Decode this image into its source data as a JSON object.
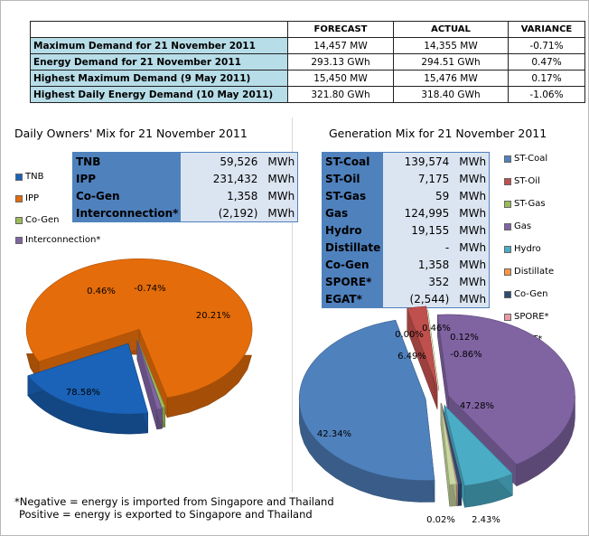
{
  "summary": {
    "headers": [
      "",
      "FORECAST",
      "ACTUAL",
      "VARIANCE"
    ],
    "rows": [
      {
        "label": "Maximum Demand for 21 November 2011",
        "forecast": "14,457  MW",
        "actual": "14,355  MW",
        "variance": "-0.71%"
      },
      {
        "label": "Energy Demand for 21 November 2011",
        "forecast": "293.13  GWh",
        "actual": "294.51  GWh",
        "variance": "0.47%"
      },
      {
        "label": "Highest Maximum Demand (9 May 2011)",
        "forecast": "15,450  MW",
        "actual": "15,476  MW",
        "variance": "0.17%"
      },
      {
        "label": "Highest Daily Energy Demand (10 May 2011)",
        "forecast": "321.80  GWh",
        "actual": "318.40  GWh",
        "variance": "-1.06%"
      }
    ]
  },
  "owners": {
    "title": "Daily Owners' Mix for 21 November 2011",
    "table": [
      {
        "name": "TNB",
        "value": "59,526",
        "unit": "MWh"
      },
      {
        "name": "IPP",
        "value": "231,432",
        "unit": "MWh"
      },
      {
        "name": "Co-Gen",
        "value": "1,358",
        "unit": "MWh"
      },
      {
        "name": "Interconnection*",
        "value": "(2,192)",
        "unit": "MWh"
      }
    ],
    "legend": [
      "TNB",
      "IPP",
      "Co-Gen",
      "Interconnection*"
    ]
  },
  "generation": {
    "title": "Generation Mix for 21 November 2011",
    "table": [
      {
        "name": "ST-Coal",
        "value": "139,574",
        "unit": "MWh"
      },
      {
        "name": "ST-Oil",
        "value": "7,175",
        "unit": "MWh"
      },
      {
        "name": "ST-Gas",
        "value": "59",
        "unit": "MWh"
      },
      {
        "name": "Gas",
        "value": "124,995",
        "unit": "MWh"
      },
      {
        "name": "Hydro",
        "value": "19,155",
        "unit": "MWh"
      },
      {
        "name": "Distillate",
        "value": "-",
        "unit": "MWh"
      },
      {
        "name": "Co-Gen",
        "value": "1,358",
        "unit": "MWh"
      },
      {
        "name": "SPORE*",
        "value": "352",
        "unit": "MWh"
      },
      {
        "name": "EGAT*",
        "value": "(2,544)",
        "unit": "MWh"
      }
    ],
    "legend": [
      "ST-Coal",
      "ST-Oil",
      "ST-Gas",
      "Gas",
      "Hydro",
      "Distillate",
      "Co-Gen",
      "SPORE*",
      "EGAT*"
    ]
  },
  "footnote": {
    "line1": "*Negative = energy is imported from Singapore and Thailand",
    "line2": "Positive = energy is exported to Singapore and Thailand"
  },
  "chart_data": [
    {
      "type": "pie",
      "title": "Daily Owners' Mix for 21 November 2011",
      "categories": [
        "TNB",
        "IPP",
        "Co-Gen",
        "Interconnection*"
      ],
      "values": [
        20.21,
        78.58,
        0.46,
        -0.74
      ],
      "labels": [
        "20.21%",
        "78.58%",
        "0.46%",
        "-0.74%"
      ],
      "colors": [
        "#1a63b8",
        "#e46c0a",
        "#9bbb59",
        "#8064a2"
      ],
      "legend": "left"
    },
    {
      "type": "pie",
      "title": "Generation Mix for 21 November 2011",
      "categories": [
        "ST-Coal",
        "ST-Oil",
        "ST-Gas",
        "Gas",
        "Hydro",
        "Distillate",
        "Co-Gen",
        "SPORE*",
        "EGAT*"
      ],
      "values": [
        47.28,
        2.43,
        0.02,
        42.34,
        6.49,
        0.0,
        0.46,
        0.12,
        -0.86
      ],
      "labels": [
        "47.28%",
        "2.43%",
        "0.02%",
        "42.34%",
        "6.49%",
        "0.00%",
        "0.46%",
        "0.12%",
        "-0.86%"
      ],
      "colors": [
        "#4f81bd",
        "#c0504d",
        "#9bbb59",
        "#8064a2",
        "#4bacc6",
        "#f79646",
        "#2c4d75",
        "#ec9ba4",
        "#c9d7a0"
      ],
      "legend": "right"
    }
  ]
}
